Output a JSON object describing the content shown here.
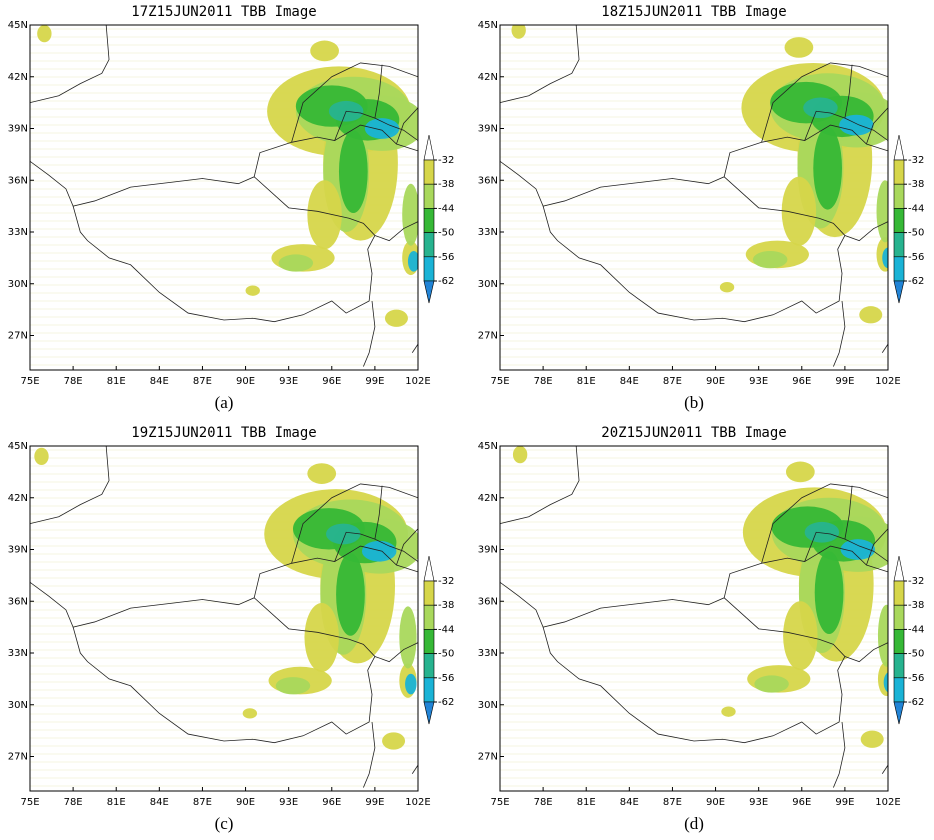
{
  "panels": [
    {
      "title": "17Z15JUN2011 TBB Image",
      "label": "(a)"
    },
    {
      "title": "18Z15JUN2011 TBB Image",
      "label": "(b)"
    },
    {
      "title": "19Z15JUN2011 TBB Image",
      "label": "(c)"
    },
    {
      "title": "20Z15JUN2011 TBB Image",
      "label": "(d)"
    }
  ],
  "map": {
    "xlim": [
      75,
      102
    ],
    "ylim": [
      25,
      45
    ],
    "xticks": [
      {
        "value": 75,
        "label": "75E"
      },
      {
        "value": 78,
        "label": "78E"
      },
      {
        "value": 81,
        "label": "81E"
      },
      {
        "value": 84,
        "label": "84E"
      },
      {
        "value": 87,
        "label": "87E"
      },
      {
        "value": 90,
        "label": "90E"
      },
      {
        "value": 93,
        "label": "93E"
      },
      {
        "value": 96,
        "label": "96E"
      },
      {
        "value": 99,
        "label": "99E"
      },
      {
        "value": 102,
        "label": "102E"
      }
    ],
    "yticks": [
      {
        "value": 27,
        "label": "27N"
      },
      {
        "value": 30,
        "label": "30N"
      },
      {
        "value": 33,
        "label": "33N"
      },
      {
        "value": 36,
        "label": "36N"
      },
      {
        "value": 39,
        "label": "39N"
      },
      {
        "value": 42,
        "label": "42N"
      },
      {
        "value": 45,
        "label": "45N"
      }
    ]
  },
  "colorbar": {
    "levels": [
      -32,
      -38,
      -44,
      -50,
      -56,
      -62
    ],
    "colors": [
      "#ffffff",
      "#d6d64a",
      "#a9d85c",
      "#36b836",
      "#27b38f",
      "#1ab3d6",
      "#2284d6"
    ]
  }
}
